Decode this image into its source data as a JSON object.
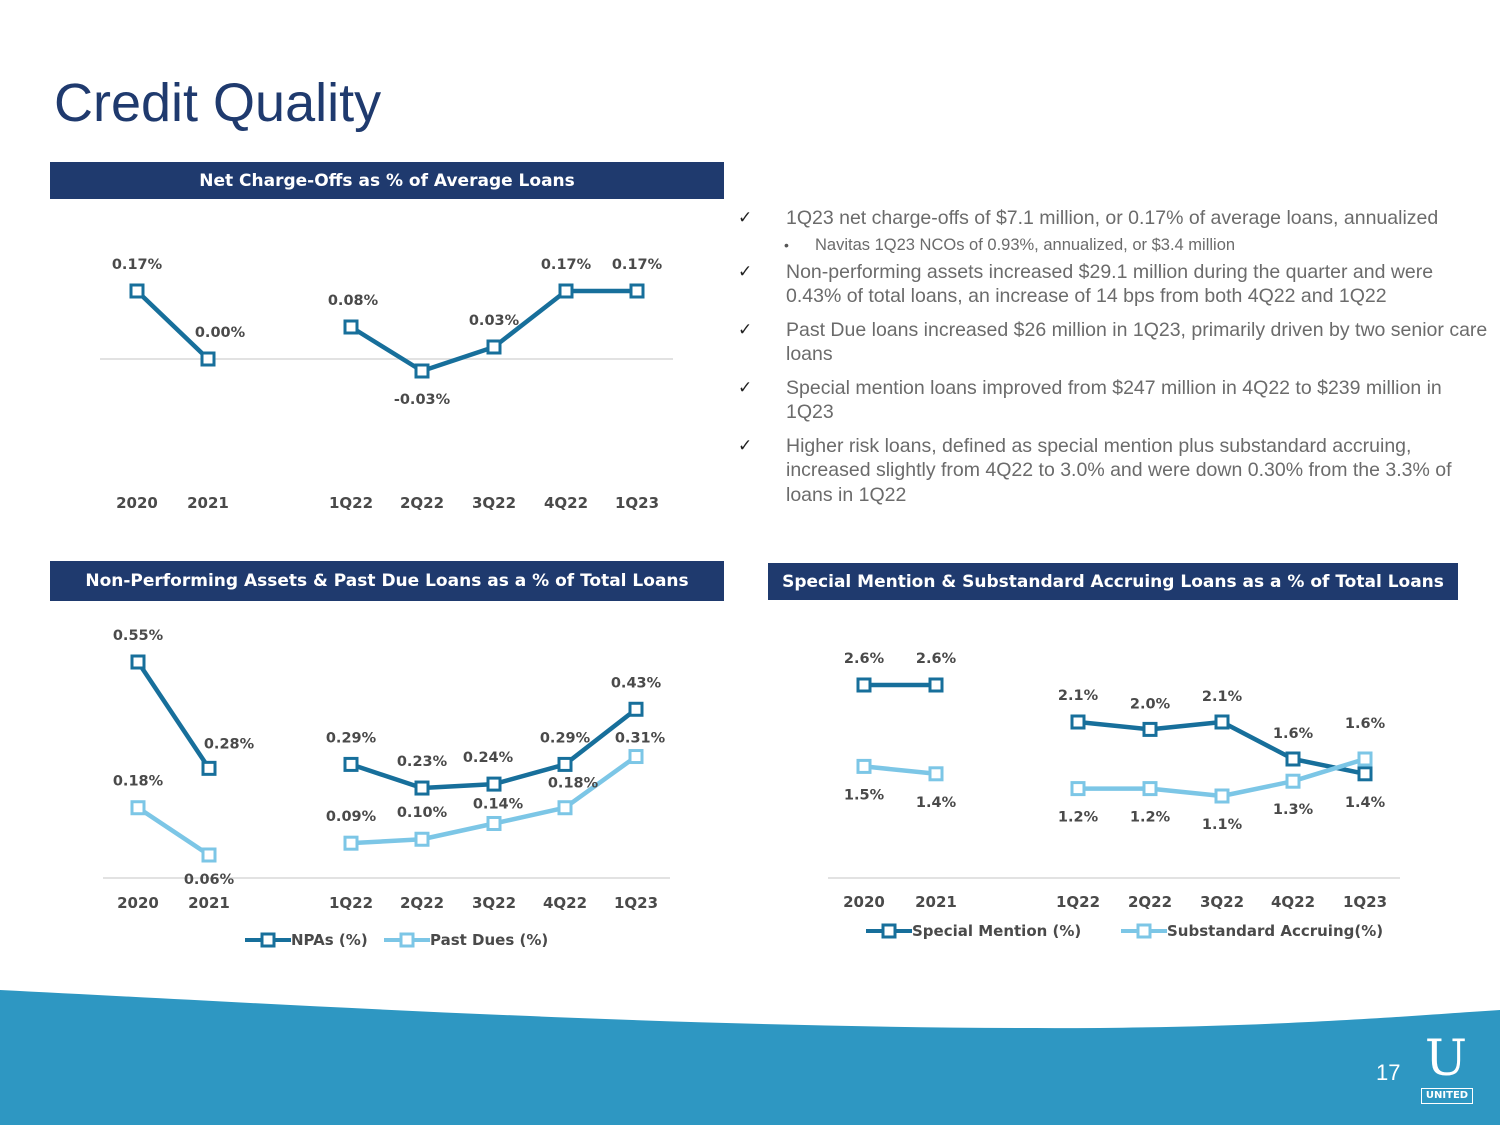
{
  "page": {
    "title": "Credit Quality",
    "page_number": "17",
    "logo_letter": "U",
    "logo_text": "UNITED"
  },
  "colors": {
    "navy": "#1f3a6e",
    "dark_series": "#176f9b",
    "light_series": "#7cc6e6",
    "wave": "#2e97c2"
  },
  "bullets": [
    {
      "level": 1,
      "text": "1Q23 net charge-offs of $7.1 million, or 0.17% of average loans, annualized"
    },
    {
      "level": 2,
      "text": "Navitas 1Q23 NCOs of 0.93%, annualized, or $3.4 million"
    },
    {
      "level": 1,
      "text": "Non-performing assets increased $29.1 million during the quarter and were 0.43% of total loans, an increase of 14 bps from both 4Q22 and 1Q22"
    },
    {
      "level": 1,
      "text": "Past Due loans increased $26 million in 1Q23, primarily driven by two senior care loans"
    },
    {
      "level": 1,
      "text": "Special mention loans improved from $247 million in 4Q22 to $239 million in 1Q23"
    },
    {
      "level": 1,
      "text": "Higher risk loans, defined as special mention plus substandard accruing, increased slightly from 4Q22 to 3.0% and were down 0.30% from the 3.3% of loans in 1Q22"
    }
  ],
  "chart_data": [
    {
      "id": "nco",
      "type": "line",
      "title": "Net Charge-Offs as % of Average Loans",
      "categories": [
        "2020",
        "2021",
        "1Q22",
        "2Q22",
        "3Q22",
        "4Q22",
        "1Q23"
      ],
      "series": [
        {
          "name": "Net Charge-Offs",
          "values": [
            0.17,
            0.0,
            0.08,
            -0.03,
            0.03,
            0.17,
            0.17
          ],
          "labels": [
            "0.17%",
            "0.00%",
            "0.08%",
            "-0.03%",
            "0.03%",
            "0.17%",
            "0.17%"
          ]
        }
      ],
      "legend": []
    },
    {
      "id": "npa",
      "type": "line",
      "title": "Non-Performing Assets & Past Due Loans as a % of Total Loans",
      "categories": [
        "2020",
        "2021",
        "1Q22",
        "2Q22",
        "3Q22",
        "4Q22",
        "1Q23"
      ],
      "series": [
        {
          "name": "NPAs (%)",
          "values": [
            0.55,
            0.28,
            0.29,
            0.23,
            0.24,
            0.29,
            0.43
          ],
          "labels": [
            "0.55%",
            "0.28%",
            "0.29%",
            "0.23%",
            "0.24%",
            "0.29%",
            "0.43%"
          ]
        },
        {
          "name": "Past Dues (%)",
          "values": [
            0.18,
            0.06,
            0.09,
            0.1,
            0.14,
            0.18,
            0.31
          ],
          "labels": [
            "0.18%",
            "0.06%",
            "0.09%",
            "0.10%",
            "0.14%",
            "0.18%",
            "0.31%"
          ]
        }
      ],
      "legend": [
        "NPAs (%)",
        "Past Dues (%)"
      ]
    },
    {
      "id": "sm",
      "type": "line",
      "title": "Special Mention & Substandard Accruing Loans as a % of Total Loans",
      "categories": [
        "2020",
        "2021",
        "1Q22",
        "2Q22",
        "3Q22",
        "4Q22",
        "1Q23"
      ],
      "series": [
        {
          "name": "Special Mention (%)",
          "values": [
            2.6,
            2.6,
            2.1,
            2.0,
            2.1,
            1.6,
            1.4
          ],
          "labels": [
            "2.6%",
            "2.6%",
            "2.1%",
            "2.0%",
            "2.1%",
            "1.6%",
            "1.4%"
          ]
        },
        {
          "name": "Substandard Accruing(%)",
          "values": [
            1.5,
            1.4,
            1.2,
            1.2,
            1.1,
            1.3,
            1.6
          ],
          "labels": [
            "1.5%",
            "1.4%",
            "1.2%",
            "1.2%",
            "1.1%",
            "1.3%",
            "1.6%"
          ]
        }
      ],
      "legend": [
        "Special Mention (%)",
        "Substandard Accruing(%)"
      ]
    }
  ]
}
